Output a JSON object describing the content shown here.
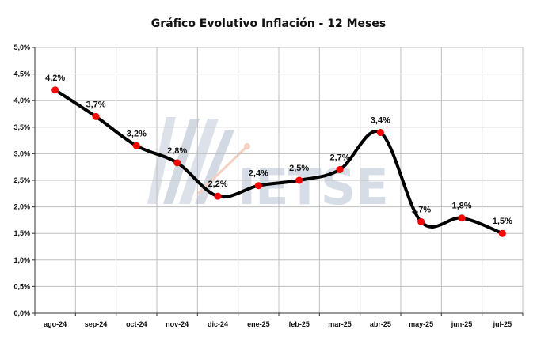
{
  "chart_data": {
    "type": "line",
    "title": "Gráfico Evolutivo Inflación - 12 Meses",
    "xlabel": "",
    "ylabel": "",
    "categories": [
      "ago-24",
      "sep-24",
      "oct-24",
      "nov-24",
      "dic-24",
      "ene-25",
      "feb-25",
      "mar-25",
      "abr-25",
      "may-25",
      "jun-25",
      "jul-25"
    ],
    "series": [
      {
        "values": [
          4.2,
          3.7,
          3.15,
          2.83,
          2.2,
          2.4,
          2.5,
          2.7,
          3.4,
          1.72,
          1.79,
          1.5
        ]
      }
    ],
    "data_labels": [
      "4,2%",
      "3,7%",
      "3,2%",
      "2,8%",
      "2,2%",
      "2,4%",
      "2,5%",
      "2,7%",
      "3,4%",
      "1,7%",
      "1,8%",
      "1,5%"
    ],
    "ylim": [
      0,
      5
    ],
    "yticks": [
      "0,0%",
      "0,5%",
      "1,0%",
      "1,5%",
      "2,0%",
      "2,5%",
      "3,0%",
      "3,5%",
      "4,0%",
      "4,5%",
      "5,0%"
    ],
    "grid": true,
    "line_color": "#000000",
    "marker_color": "#ff0000",
    "watermark": "IETSE"
  }
}
